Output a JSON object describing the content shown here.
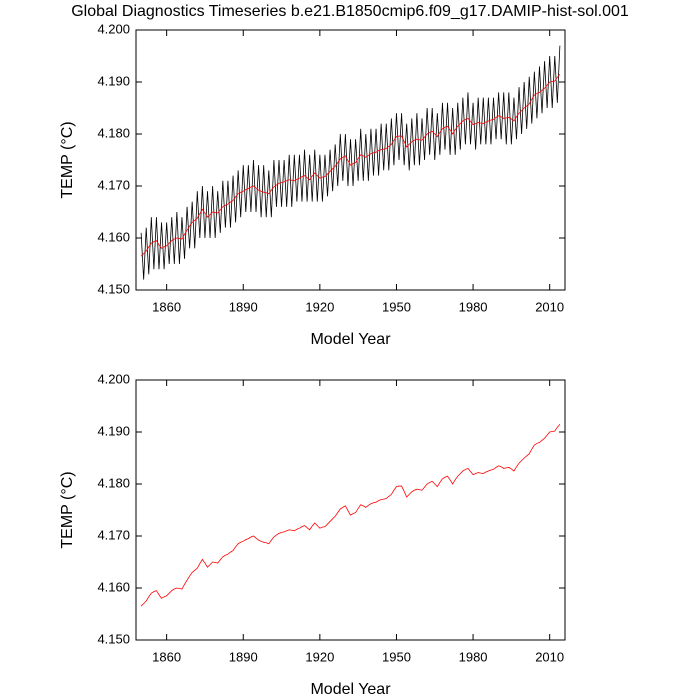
{
  "chart_data": [
    {
      "type": "line",
      "title": "Global Diagnostics Timeseries b.e21.B1850cmip6.f09_g17.DAMIP-hist-sol.001",
      "x_label": "Model Year",
      "y_label": "TEMP (°C)",
      "xlim": [
        1848,
        2016
      ],
      "ylim": [
        4.15,
        4.2
      ],
      "xticks": [
        1860,
        1890,
        1920,
        1950,
        1980,
        2010
      ],
      "yticks": [
        {
          "value": 4.15,
          "label": "4.150"
        },
        {
          "value": 4.16,
          "label": "4.160"
        },
        {
          "value": 4.17,
          "label": "4.170"
        },
        {
          "value": 4.18,
          "label": "4.180"
        },
        {
          "value": 4.19,
          "label": "4.190"
        },
        {
          "value": 4.2,
          "label": "4.200"
        }
      ],
      "x": [
        1850,
        1851,
        1852,
        1853,
        1854,
        1855,
        1856,
        1857,
        1858,
        1859,
        1860,
        1861,
        1862,
        1863,
        1864,
        1865,
        1866,
        1867,
        1868,
        1869,
        1870,
        1871,
        1872,
        1873,
        1874,
        1875,
        1876,
        1877,
        1878,
        1879,
        1880,
        1881,
        1882,
        1883,
        1884,
        1885,
        1886,
        1887,
        1888,
        1889,
        1890,
        1891,
        1892,
        1893,
        1894,
        1895,
        1896,
        1897,
        1898,
        1899,
        1900,
        1901,
        1902,
        1903,
        1904,
        1905,
        1906,
        1907,
        1908,
        1909,
        1910,
        1911,
        1912,
        1913,
        1914,
        1915,
        1916,
        1917,
        1918,
        1919,
        1920,
        1921,
        1922,
        1923,
        1924,
        1925,
        1926,
        1927,
        1928,
        1929,
        1930,
        1931,
        1932,
        1933,
        1934,
        1935,
        1936,
        1937,
        1938,
        1939,
        1940,
        1941,
        1942,
        1943,
        1944,
        1945,
        1946,
        1947,
        1948,
        1949,
        1950,
        1951,
        1952,
        1953,
        1954,
        1955,
        1956,
        1957,
        1958,
        1959,
        1960,
        1961,
        1962,
        1963,
        1964,
        1965,
        1966,
        1967,
        1968,
        1969,
        1970,
        1971,
        1972,
        1973,
        1974,
        1975,
        1976,
        1977,
        1978,
        1979,
        1980,
        1981,
        1982,
        1983,
        1984,
        1985,
        1986,
        1987,
        1988,
        1989,
        1990,
        1991,
        1992,
        1993,
        1994,
        1995,
        1996,
        1997,
        1998,
        1999,
        2000,
        2001,
        2002,
        2003,
        2004,
        2005,
        2006,
        2007,
        2008,
        2009,
        2010,
        2011,
        2012,
        2013,
        2014
      ],
      "series": [
        {
          "color": "#000000",
          "values": [
            4.161,
            4.152,
            4.162,
            4.153,
            4.164,
            4.154,
            4.164,
            4.154,
            4.163,
            4.154,
            4.163,
            4.155,
            4.164,
            4.155,
            4.165,
            4.155,
            4.164,
            4.156,
            4.166,
            4.158,
            4.167,
            4.158,
            4.169,
            4.16,
            4.17,
            4.16,
            4.169,
            4.16,
            4.17,
            4.16,
            4.169,
            4.161,
            4.171,
            4.162,
            4.171,
            4.162,
            4.172,
            4.163,
            4.173,
            4.164,
            4.174,
            4.165,
            4.174,
            4.165,
            4.175,
            4.165,
            4.174,
            4.164,
            4.174,
            4.164,
            4.173,
            4.164,
            4.175,
            4.166,
            4.175,
            4.166,
            4.175,
            4.166,
            4.176,
            4.166,
            4.176,
            4.167,
            4.176,
            4.167,
            4.177,
            4.167,
            4.176,
            4.167,
            4.177,
            4.167,
            4.176,
            4.167,
            4.176,
            4.168,
            4.177,
            4.169,
            4.178,
            4.17,
            4.18,
            4.171,
            4.18,
            4.17,
            4.179,
            4.17,
            4.179,
            4.171,
            4.181,
            4.171,
            4.18,
            4.171,
            4.181,
            4.172,
            4.181,
            4.172,
            4.182,
            4.173,
            4.182,
            4.173,
            4.183,
            4.174,
            4.184,
            4.175,
            4.184,
            4.174,
            4.182,
            4.173,
            4.183,
            4.174,
            4.184,
            4.174,
            4.183,
            4.175,
            4.185,
            4.176,
            4.185,
            4.175,
            4.184,
            4.176,
            4.186,
            4.177,
            4.186,
            4.176,
            4.185,
            4.176,
            4.186,
            4.177,
            4.187,
            4.178,
            4.188,
            4.178,
            4.186,
            4.177,
            4.187,
            4.178,
            4.187,
            4.178,
            4.187,
            4.178,
            4.187,
            4.179,
            4.188,
            4.179,
            4.188,
            4.178,
            4.188,
            4.178,
            4.187,
            4.179,
            4.189,
            4.18,
            4.19,
            4.181,
            4.191,
            4.182,
            4.192,
            4.183,
            4.193,
            4.184,
            4.194,
            4.185,
            4.195,
            4.185,
            4.195,
            4.186,
            4.197
          ]
        },
        {
          "color": "#ff0000",
          "values": [
            4.1565,
            4.157,
            4.1575,
            4.1583,
            4.159,
            4.1593,
            4.1595,
            4.1587,
            4.158,
            4.1583,
            4.1585,
            4.159,
            4.1595,
            4.1598,
            4.16,
            4.1599,
            4.1598,
            4.1607,
            4.1615,
            4.1623,
            4.163,
            4.1634,
            4.1638,
            4.1647,
            4.1655,
            4.1648,
            4.164,
            4.1645,
            4.165,
            4.1649,
            4.1648,
            4.1654,
            4.166,
            4.1663,
            4.1665,
            4.1669,
            4.1672,
            4.1679,
            4.1685,
            4.1688,
            4.169,
            4.1693,
            4.1695,
            4.1698,
            4.17,
            4.1696,
            4.1692,
            4.169,
            4.1688,
            4.1687,
            4.1685,
            4.1692,
            4.1698,
            4.1702,
            4.1705,
            4.1707,
            4.1708,
            4.171,
            4.1712,
            4.1711,
            4.171,
            4.1713,
            4.1715,
            4.1718,
            4.172,
            4.1716,
            4.1712,
            4.1719,
            4.1725,
            4.172,
            4.1715,
            4.1717,
            4.1718,
            4.1723,
            4.1728,
            4.1733,
            4.1738,
            4.1745,
            4.1752,
            4.1755,
            4.1758,
            4.1749,
            4.174,
            4.1743,
            4.1745,
            4.1753,
            4.176,
            4.1758,
            4.1755,
            4.1759,
            4.1762,
            4.1764,
            4.1765,
            4.1768,
            4.177,
            4.1771,
            4.1772,
            4.1776,
            4.178,
            4.1788,
            4.1795,
            4.1796,
            4.1796,
            4.1786,
            4.1775,
            4.178,
            4.1785,
            4.1788,
            4.179,
            4.1789,
            4.1788,
            4.1794,
            4.18,
            4.1803,
            4.1805,
            4.18,
            4.1795,
            4.1803,
            4.181,
            4.1813,
            4.1815,
            4.1808,
            4.18,
            4.1808,
            4.1815,
            4.182,
            4.1825,
            4.1828,
            4.183,
            4.1824,
            4.1818,
            4.182,
            4.1822,
            4.1821,
            4.182,
            4.1823,
            4.1825,
            4.1827,
            4.1828,
            4.1832,
            4.1835,
            4.1833,
            4.183,
            4.1831,
            4.1832,
            4.1829,
            4.1825,
            4.1833,
            4.184,
            4.1845,
            4.185,
            4.1854,
            4.1858,
            4.1867,
            4.1875,
            4.1878,
            4.188,
            4.1884,
            4.1888,
            4.1894,
            4.19,
            4.1901,
            4.1902,
            4.1909,
            4.1915
          ]
        }
      ]
    },
    {
      "type": "line",
      "x_label": "Model Year",
      "y_label": "TEMP (°C)",
      "xlim": [
        1848,
        2016
      ],
      "ylim": [
        4.15,
        4.2
      ],
      "xticks": [
        1860,
        1890,
        1920,
        1950,
        1980,
        2010
      ],
      "yticks": [
        {
          "value": 4.15,
          "label": "4.150"
        },
        {
          "value": 4.16,
          "label": "4.160"
        },
        {
          "value": 4.17,
          "label": "4.170"
        },
        {
          "value": 4.18,
          "label": "4.180"
        },
        {
          "value": 4.19,
          "label": "4.190"
        },
        {
          "value": 4.2,
          "label": "4.200"
        }
      ],
      "x": [
        1850,
        1851,
        1852,
        1853,
        1854,
        1855,
        1856,
        1857,
        1858,
        1859,
        1860,
        1861,
        1862,
        1863,
        1864,
        1865,
        1866,
        1867,
        1868,
        1869,
        1870,
        1871,
        1872,
        1873,
        1874,
        1875,
        1876,
        1877,
        1878,
        1879,
        1880,
        1881,
        1882,
        1883,
        1884,
        1885,
        1886,
        1887,
        1888,
        1889,
        1890,
        1891,
        1892,
        1893,
        1894,
        1895,
        1896,
        1897,
        1898,
        1899,
        1900,
        1901,
        1902,
        1903,
        1904,
        1905,
        1906,
        1907,
        1908,
        1909,
        1910,
        1911,
        1912,
        1913,
        1914,
        1915,
        1916,
        1917,
        1918,
        1919,
        1920,
        1921,
        1922,
        1923,
        1924,
        1925,
        1926,
        1927,
        1928,
        1929,
        1930,
        1931,
        1932,
        1933,
        1934,
        1935,
        1936,
        1937,
        1938,
        1939,
        1940,
        1941,
        1942,
        1943,
        1944,
        1945,
        1946,
        1947,
        1948,
        1949,
        1950,
        1951,
        1952,
        1953,
        1954,
        1955,
        1956,
        1957,
        1958,
        1959,
        1960,
        1961,
        1962,
        1963,
        1964,
        1965,
        1966,
        1967,
        1968,
        1969,
        1970,
        1971,
        1972,
        1973,
        1974,
        1975,
        1976,
        1977,
        1978,
        1979,
        1980,
        1981,
        1982,
        1983,
        1984,
        1985,
        1986,
        1987,
        1988,
        1989,
        1990,
        1991,
        1992,
        1993,
        1994,
        1995,
        1996,
        1997,
        1998,
        1999,
        2000,
        2001,
        2002,
        2003,
        2004,
        2005,
        2006,
        2007,
        2008,
        2009,
        2010,
        2011,
        2012,
        2013,
        2014
      ],
      "series": [
        {
          "color": "#ff0000",
          "values": [
            4.1565,
            4.157,
            4.1575,
            4.1583,
            4.159,
            4.1593,
            4.1595,
            4.1587,
            4.158,
            4.1583,
            4.1585,
            4.159,
            4.1595,
            4.1598,
            4.16,
            4.1599,
            4.1598,
            4.1607,
            4.1615,
            4.1623,
            4.163,
            4.1634,
            4.1638,
            4.1647,
            4.1655,
            4.1648,
            4.164,
            4.1645,
            4.165,
            4.1649,
            4.1648,
            4.1654,
            4.166,
            4.1663,
            4.1665,
            4.1669,
            4.1672,
            4.1679,
            4.1685,
            4.1688,
            4.169,
            4.1693,
            4.1695,
            4.1698,
            4.17,
            4.1696,
            4.1692,
            4.169,
            4.1688,
            4.1687,
            4.1685,
            4.1692,
            4.1698,
            4.1702,
            4.1705,
            4.1707,
            4.1708,
            4.171,
            4.1712,
            4.1711,
            4.171,
            4.1713,
            4.1715,
            4.1718,
            4.172,
            4.1716,
            4.1712,
            4.1719,
            4.1725,
            4.172,
            4.1715,
            4.1717,
            4.1718,
            4.1723,
            4.1728,
            4.1733,
            4.1738,
            4.1745,
            4.1752,
            4.1755,
            4.1758,
            4.1749,
            4.174,
            4.1743,
            4.1745,
            4.1753,
            4.176,
            4.1758,
            4.1755,
            4.1759,
            4.1762,
            4.1764,
            4.1765,
            4.1768,
            4.177,
            4.1771,
            4.1772,
            4.1776,
            4.178,
            4.1788,
            4.1795,
            4.1796,
            4.1796,
            4.1786,
            4.1775,
            4.178,
            4.1785,
            4.1788,
            4.179,
            4.1789,
            4.1788,
            4.1794,
            4.18,
            4.1803,
            4.1805,
            4.18,
            4.1795,
            4.1803,
            4.181,
            4.1813,
            4.1815,
            4.1808,
            4.18,
            4.1808,
            4.1815,
            4.182,
            4.1825,
            4.1828,
            4.183,
            4.1824,
            4.1818,
            4.182,
            4.1822,
            4.1821,
            4.182,
            4.1823,
            4.1825,
            4.1827,
            4.1828,
            4.1832,
            4.1835,
            4.1833,
            4.183,
            4.1831,
            4.1832,
            4.1829,
            4.1825,
            4.1833,
            4.184,
            4.1845,
            4.185,
            4.1854,
            4.1858,
            4.1867,
            4.1875,
            4.1878,
            4.188,
            4.1884,
            4.1888,
            4.1894,
            4.19,
            4.1901,
            4.1902,
            4.1909,
            4.1915
          ]
        }
      ]
    }
  ]
}
